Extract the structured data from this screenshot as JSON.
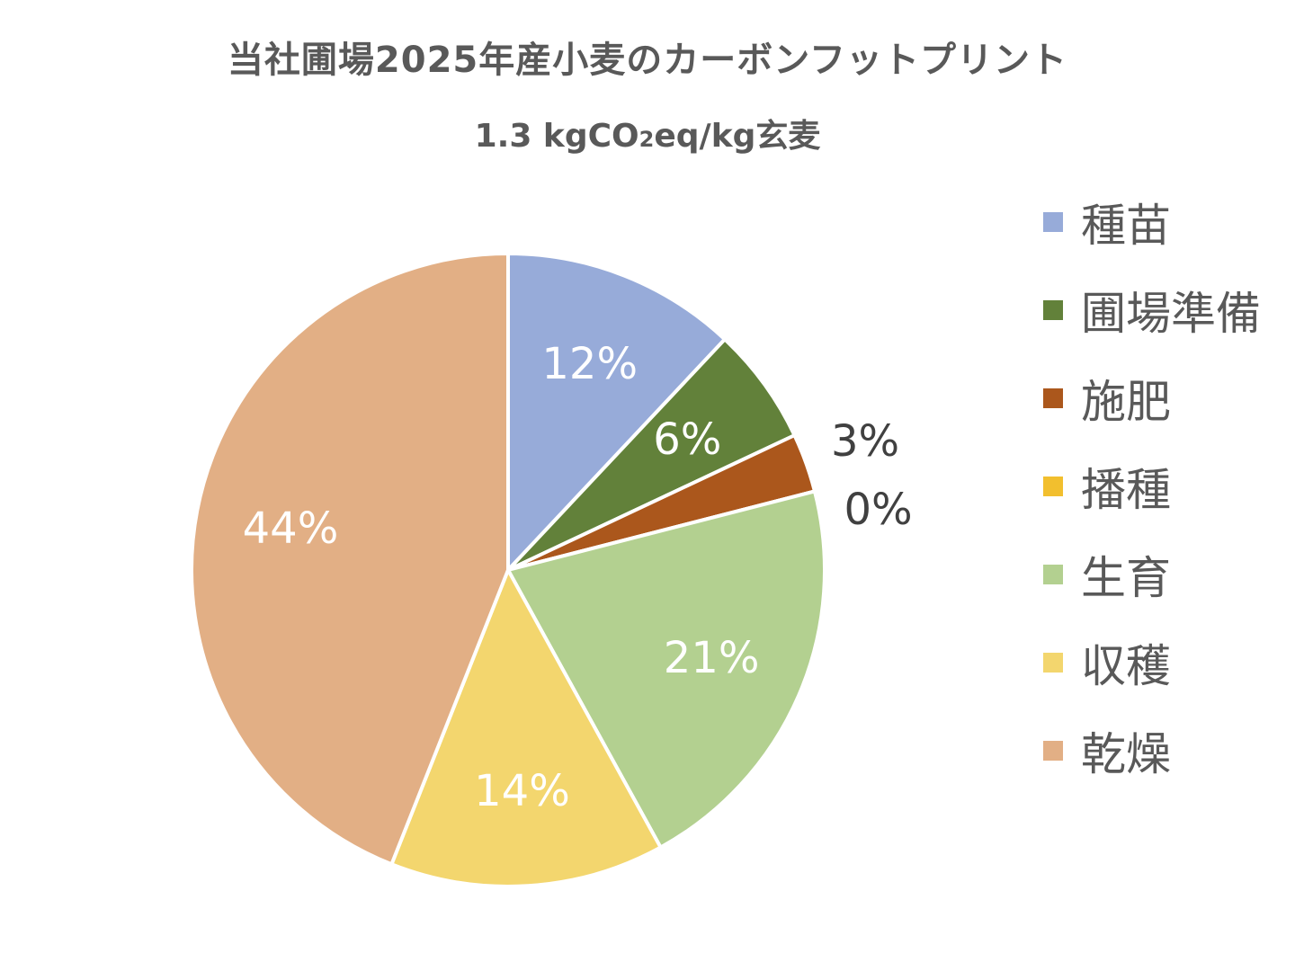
{
  "chart_data": {
    "type": "pie",
    "title": "当社圃場2025年産小麦のカーボンフットプリント",
    "subtitle": {
      "value": "1.3",
      "unit_prefix": "kgCO",
      "unit_sub": "2",
      "unit_suffix": "eq/kg玄麦"
    },
    "legend_position": "right",
    "start_angle_deg": 0,
    "direction": "clockwise",
    "categories": [
      "種苗",
      "圃場準備",
      "施肥",
      "播種",
      "生育",
      "収穫",
      "乾燥"
    ],
    "values": [
      12,
      6,
      3,
      0,
      21,
      14,
      44
    ],
    "labels": [
      "12%",
      "6%",
      "3%",
      "0%",
      "21%",
      "14%",
      "44%"
    ],
    "label_placement": [
      "inside",
      "inside",
      "outside",
      "outside",
      "inside",
      "inside",
      "inside"
    ],
    "colors": [
      "#97ABD9",
      "#62813A",
      "#AB571C",
      "#F2BF2E",
      "#B3D090",
      "#F3D66E",
      "#E2AF85"
    ],
    "label_colors": [
      "#ffffff",
      "#ffffff",
      "#404040",
      "#404040",
      "#ffffff",
      "#ffffff",
      "#ffffff"
    ]
  }
}
